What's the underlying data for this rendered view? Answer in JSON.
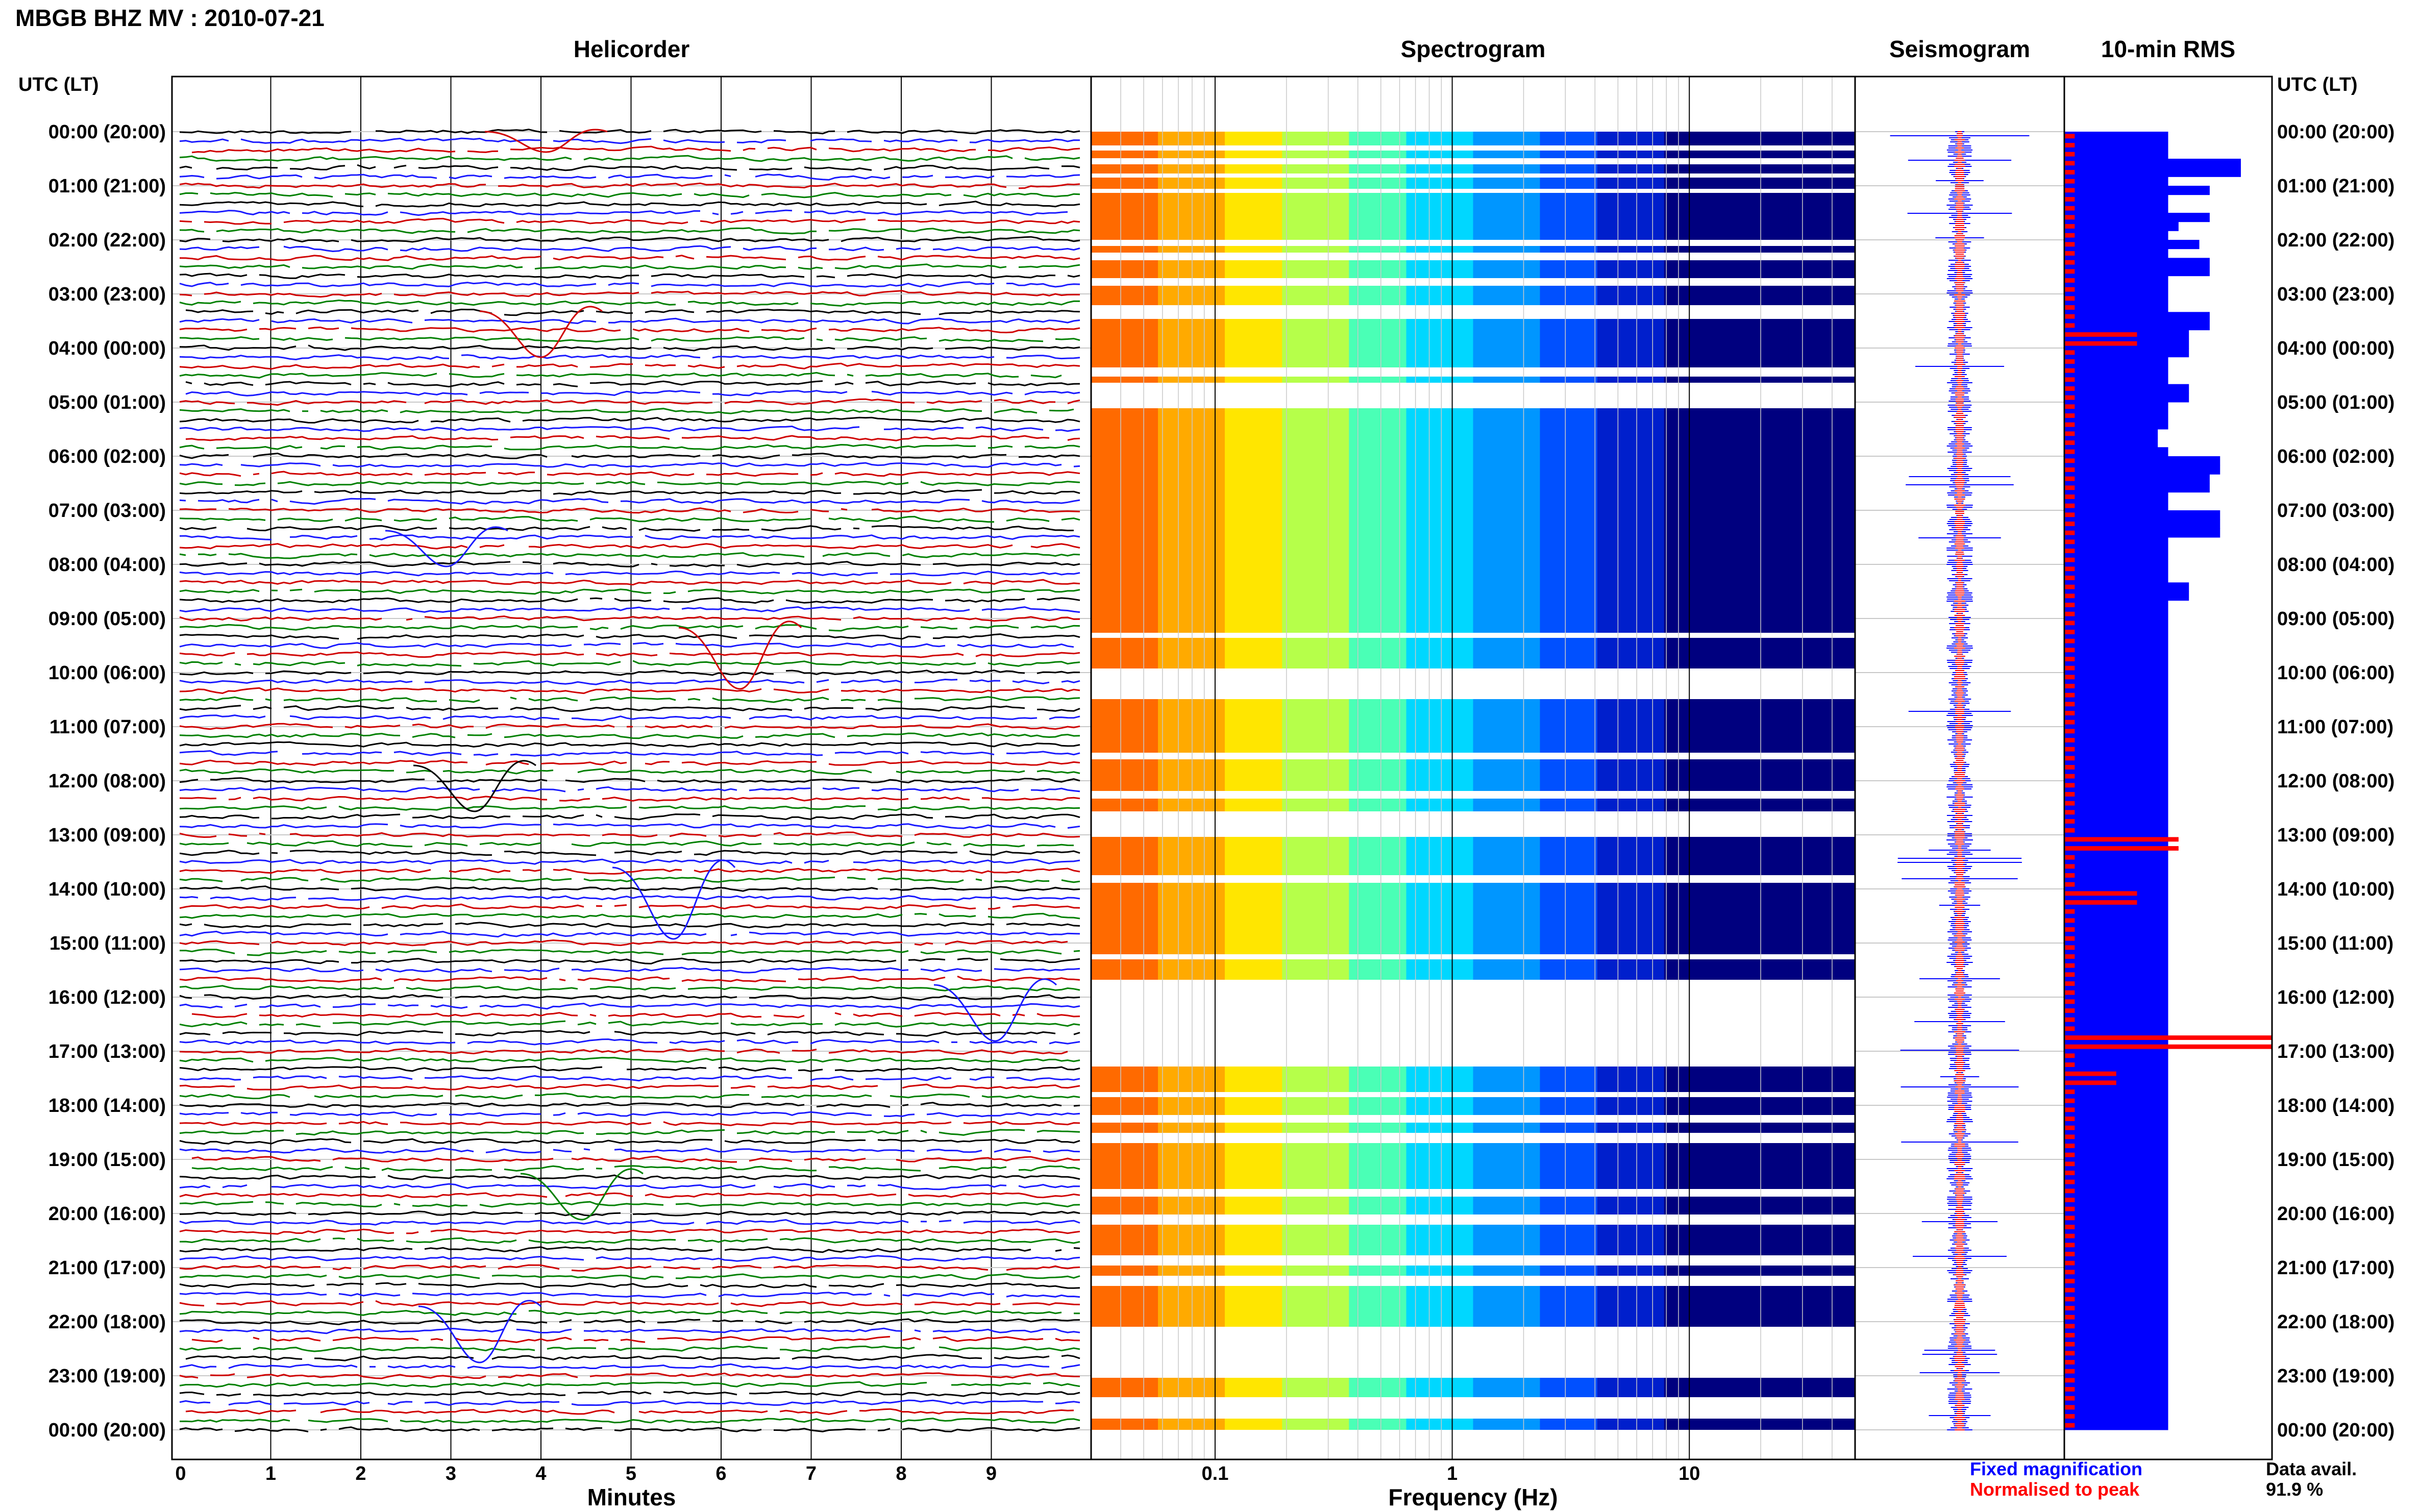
{
  "page": {
    "title": "MBGB BHZ MV : 2010-07-21",
    "axis_header_left": "UTC (LT)",
    "axis_header_right": "UTC (LT)",
    "legend": {
      "fixed": "Fixed magnification",
      "normalised": "Normalised to peak"
    },
    "data_avail_label": "Data avail.",
    "data_avail_value": "91.9 %",
    "colors": {
      "trace_cycle": [
        "#000000",
        "#1a1aff",
        "#d00000",
        "#008000"
      ],
      "spectrogram_low": "#00007f",
      "spectrogram_high": "#ff7f00",
      "seismogram_fixed": "#0000ff",
      "seismogram_normalised": "#ff0000",
      "rms_fixed": "#0000ff",
      "rms_normalised": "#ff0000",
      "grid": "#c8c8c8"
    }
  },
  "chart_data": [
    {
      "type": "line",
      "name_panel": "helicorder",
      "title": "Helicorder",
      "xlabel": "Minutes",
      "ylabel": "",
      "x_ticks": [
        "0",
        "1",
        "2",
        "3",
        "4",
        "5",
        "6",
        "7",
        "8",
        "9"
      ],
      "xlim": [
        0,
        10
      ],
      "y_tick_labels": [
        "00:00 (20:00)",
        "01:00 (21:00)",
        "02:00 (22:00)",
        "03:00 (23:00)",
        "04:00 (00:00)",
        "05:00 (01:00)",
        "06:00 (02:00)",
        "07:00 (03:00)",
        "08:00 (04:00)",
        "09:00 (05:00)",
        "10:00 (06:00)",
        "11:00 (07:00)",
        "12:00 (08:00)",
        "13:00 (09:00)",
        "14:00 (10:00)",
        "15:00 (11:00)",
        "16:00 (12:00)",
        "17:00 (13:00)",
        "18:00 (14:00)",
        "19:00 (15:00)",
        "20:00 (16:00)",
        "21:00 (17:00)",
        "22:00 (18:00)",
        "23:00 (19:00)",
        "00:00 (20:00)"
      ],
      "traces_per_hour": 6,
      "trace_minutes": 10,
      "grid": true
    },
    {
      "type": "heatmap",
      "name_panel": "spectrogram",
      "title": "Spectrogram",
      "xlabel": "Frequency (Hz)",
      "x_scale": "log",
      "xlim": [
        0.03,
        50
      ],
      "x_ticks": [
        "0.1",
        "1",
        "10"
      ],
      "grid": true
    },
    {
      "type": "line",
      "name_panel": "seismogram",
      "title": "Seismogram",
      "series": [
        {
          "name": "Fixed magnification"
        },
        {
          "name": "Normalised to peak"
        }
      ]
    },
    {
      "type": "bar",
      "name_panel": "rms",
      "title": "10-min RMS",
      "orientation": "horizontal",
      "bins": 144,
      "xlim": [
        0,
        1
      ],
      "series": [
        {
          "name": "Fixed magnification",
          "values": [
            0.5,
            0.5,
            0.5,
            0.85,
            0.85,
            0.5,
            0.7,
            0.5,
            0.5,
            0.7,
            0.55,
            0.5,
            0.65,
            0.5,
            0.7,
            0.7,
            0.5,
            0.5,
            0.5,
            0.5,
            0.7,
            0.7,
            0.6,
            0.6,
            0.6,
            0.5,
            0.5,
            0.5,
            0.6,
            0.6,
            0.5,
            0.5,
            0.5,
            0.45,
            0.45,
            0.5,
            0.75,
            0.75,
            0.7,
            0.7,
            0.5,
            0.5,
            0.75,
            0.75,
            0.75,
            0.5,
            0.5,
            0.5,
            0.5,
            0.5,
            0.6,
            0.6,
            0.5,
            0.5,
            0.5,
            0.5,
            0.5,
            0.5,
            0.5,
            0.5,
            0.5,
            0.5,
            0.5,
            0.5,
            0.5,
            0.5,
            0.5,
            0.5,
            0.5,
            0.5,
            0.5,
            0.5,
            0.5,
            0.5,
            0.5,
            0.5,
            0.5,
            0.5,
            0.5,
            0.5,
            0.5,
            0.5,
            0.5,
            0.5,
            0.5,
            0.5,
            0.5,
            0.5,
            0.5,
            0.5,
            0.5,
            0.5,
            0.5,
            0.5,
            0.5,
            0.5,
            0.5,
            0.5,
            0.5,
            0.5,
            0.5,
            0.5,
            0.5,
            0.5,
            0.5,
            0.5,
            0.5,
            0.5,
            0.5,
            0.5,
            0.5,
            0.5,
            0.5,
            0.5,
            0.5,
            0.5,
            0.5,
            0.5,
            0.5,
            0.5,
            0.5,
            0.5,
            0.5,
            0.5,
            0.5,
            0.5,
            0.5,
            0.5,
            0.5,
            0.5,
            0.5,
            0.5,
            0.5,
            0.5,
            0.5,
            0.5,
            0.5,
            0.5,
            0.5,
            0.5,
            0.5,
            0.5,
            0.5,
            0.5
          ]
        },
        {
          "name": "Normalised to peak",
          "values": [
            0.05,
            0.05,
            0.05,
            0.05,
            0.05,
            0.05,
            0.05,
            0.05,
            0.05,
            0.05,
            0.05,
            0.05,
            0.05,
            0.05,
            0.05,
            0.05,
            0.05,
            0.05,
            0.05,
            0.05,
            0.05,
            0.05,
            0.35,
            0.35,
            0.05,
            0.05,
            0.05,
            0.05,
            0.05,
            0.05,
            0.05,
            0.05,
            0.05,
            0.05,
            0.05,
            0.05,
            0.05,
            0.05,
            0.05,
            0.05,
            0.05,
            0.05,
            0.05,
            0.05,
            0.05,
            0.05,
            0.05,
            0.05,
            0.05,
            0.05,
            0.05,
            0.05,
            0.05,
            0.05,
            0.05,
            0.05,
            0.05,
            0.05,
            0.05,
            0.05,
            0.05,
            0.05,
            0.05,
            0.05,
            0.05,
            0.05,
            0.05,
            0.05,
            0.05,
            0.05,
            0.05,
            0.05,
            0.05,
            0.05,
            0.05,
            0.05,
            0.05,
            0.05,
            0.55,
            0.55,
            0.05,
            0.05,
            0.05,
            0.05,
            0.35,
            0.35,
            0.05,
            0.05,
            0.05,
            0.05,
            0.05,
            0.05,
            0.05,
            0.05,
            0.05,
            0.05,
            0.05,
            0.05,
            0.05,
            0.05,
            1.0,
            1.0,
            0.05,
            0.05,
            0.25,
            0.25,
            0.05,
            0.05,
            0.05,
            0.05,
            0.05,
            0.05,
            0.05,
            0.05,
            0.05,
            0.05,
            0.05,
            0.05,
            0.05,
            0.05,
            0.05,
            0.05,
            0.05,
            0.05,
            0.05,
            0.05,
            0.05,
            0.05,
            0.05,
            0.05,
            0.05,
            0.05,
            0.05,
            0.05,
            0.05,
            0.05,
            0.05,
            0.05,
            0.05,
            0.05,
            0.05,
            0.05,
            0.05,
            0.05
          ]
        }
      ]
    }
  ]
}
